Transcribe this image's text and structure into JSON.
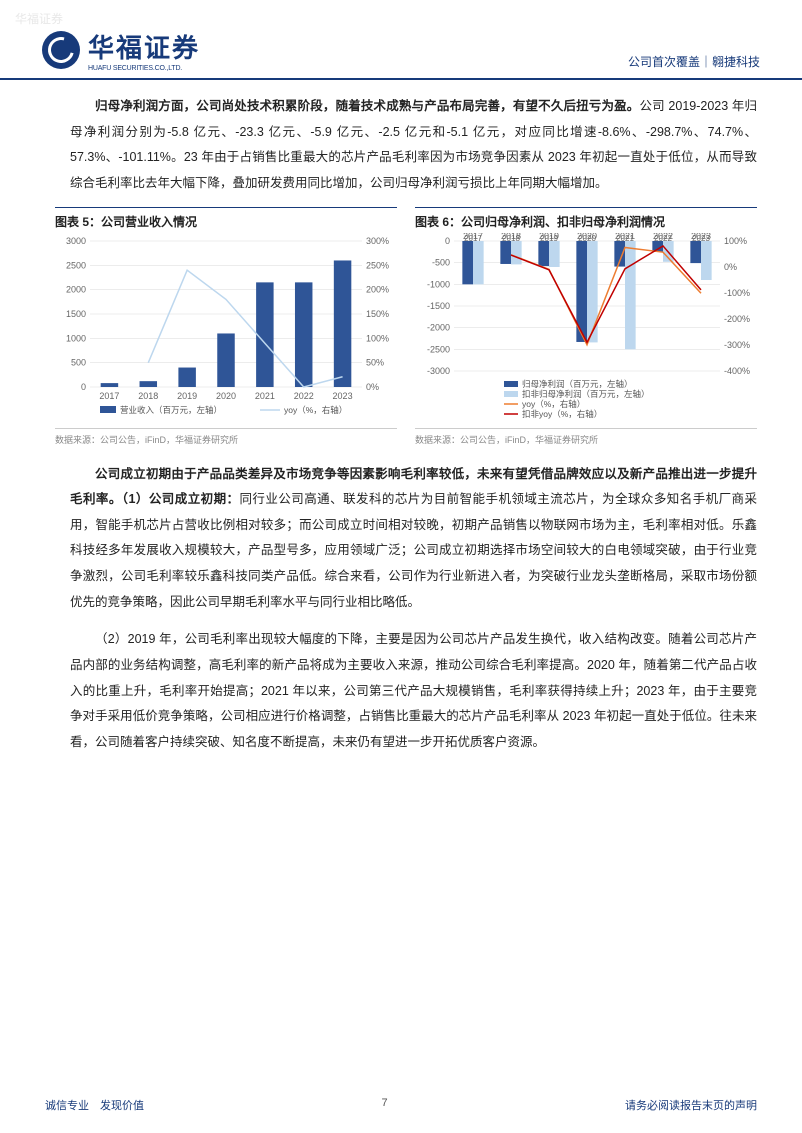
{
  "watermark": "华福证券",
  "header": {
    "logo_cn": "华福证券",
    "logo_en": "HUAFU SECURITIES.CO.,LTD.",
    "right": "公司首次覆盖｜翱捷科技"
  },
  "para1": {
    "bold": "归母净利润方面，公司尚处技术积累阶段，随着技术成熟与产品布局完善，有望不久后扭亏为盈。",
    "rest": "公司 2019-2023 年归母净利润分别为-5.8 亿元、-23.3 亿元、-5.9 亿元、-2.5 亿元和-5.1 亿元，对应同比增速-8.6%、-298.7%、74.7%、57.3%、-101.11%。23 年由于占销售比重最大的芯片产品毛利率因为市场竞争因素从 2023 年初起一直处于低位，从而导致综合毛利率比去年大幅下降，叠加研发费用同比增加，公司归母净利润亏损比上年同期大幅增加。"
  },
  "chart5": {
    "title": "图表 5：公司营业收入情况",
    "source": "数据来源：公司公告，iFinD，华福证券研究所",
    "type": "bar+line",
    "categories": [
      "2017",
      "2018",
      "2019",
      "2020",
      "2021",
      "2022",
      "2023"
    ],
    "bar_values": [
      80,
      120,
      400,
      1100,
      2150,
      2150,
      2600
    ],
    "line_values": [
      null,
      50,
      240,
      180,
      90,
      0,
      21
    ],
    "y_left": {
      "min": 0,
      "max": 3000,
      "step": 500
    },
    "y_right": {
      "min": 0,
      "max": 300,
      "step": 50,
      "suffix": "%"
    },
    "bar_color": "#2f5597",
    "line_color": "#bdd7ee",
    "legend_bar": "营业收入（百万元，左轴）",
    "legend_line": "yoy（%，右轴）",
    "grid_color": "#d9d9d9",
    "label_fontsize": 9
  },
  "chart6": {
    "title": "图表 6：公司归母净利润、扣非归母净利润情况",
    "source": "数据来源：公司公告，iFinD，华福证券研究所",
    "type": "bar+line",
    "categories": [
      "2017",
      "2018",
      "2019",
      "2020",
      "2021",
      "2022",
      "2023"
    ],
    "bar1_values": [
      -1000,
      -530,
      -580,
      -2330,
      -590,
      -250,
      -510
    ],
    "bar2_values": [
      -1000,
      -540,
      -600,
      -2340,
      -2500,
      -480,
      -900
    ],
    "line1_values": [
      null,
      47,
      -9,
      -299,
      75,
      57,
      -101
    ],
    "line2_values": [
      null,
      46,
      -11,
      -290,
      -7,
      81,
      -88
    ],
    "y_left": {
      "min": -3000,
      "max": 0,
      "step": 500
    },
    "y_right": {
      "min": -400,
      "max": 100,
      "step": 100,
      "suffix": "%"
    },
    "bar1_color": "#2f5597",
    "bar2_color": "#bdd7ee",
    "line1_color": "#ed7d31",
    "line2_color": "#c00000",
    "legend_bar1": "归母净利润（百万元，左轴）",
    "legend_bar2": "扣非归母净利润（百万元，左轴）",
    "legend_line1": "yoy（%，右轴）",
    "legend_line2": "扣非yoy（%，右轴）",
    "grid_color": "#d9d9d9",
    "label_fontsize": 9
  },
  "para2": {
    "bold": "公司成立初期由于产品品类差异及市场竞争等因素影响毛利率较低，未来有望凭借品牌效应以及新产品推出进一步提升毛利率。（1）公司成立初期：",
    "rest": "同行业公司高通、联发科的芯片为目前智能手机领域主流芯片，为全球众多知名手机厂商采用，智能手机芯片占营收比例相对较多；而公司成立时间相对较晚，初期产品销售以物联网市场为主，毛利率相对低。乐鑫科技经多年发展收入规模较大，产品型号多，应用领域广泛；公司成立初期选择市场空间较大的白电领域突破，由于行业竞争激烈，公司毛利率较乐鑫科技同类产品低。综合来看，公司作为行业新进入者，为突破行业龙头垄断格局，采取市场份额优先的竞争策略，因此公司早期毛利率水平与同行业相比略低。"
  },
  "para3": "（2）2019 年，公司毛利率出现较大幅度的下降，主要是因为公司芯片产品发生换代，收入结构改变。随着公司芯片产品内部的业务结构调整，高毛利率的新产品将成为主要收入来源，推动公司综合毛利率提高。2020 年，随着第二代产品占收入的比重上升，毛利率开始提高；2021 年以来，公司第三代产品大规模销售，毛利率获得持续上升；2023 年，由于主要竞争对手采用低价竞争策略，公司相应进行价格调整，占销售比重最大的芯片产品毛利率从 2023 年初起一直处于低位。往未来看，公司随着客户持续突破、知名度不断提高，未来仍有望进一步开拓优质客户资源。",
  "footer": {
    "left": "诚信专业　发现价值",
    "page": "7",
    "right": "请务必阅读报告末页的声明"
  }
}
